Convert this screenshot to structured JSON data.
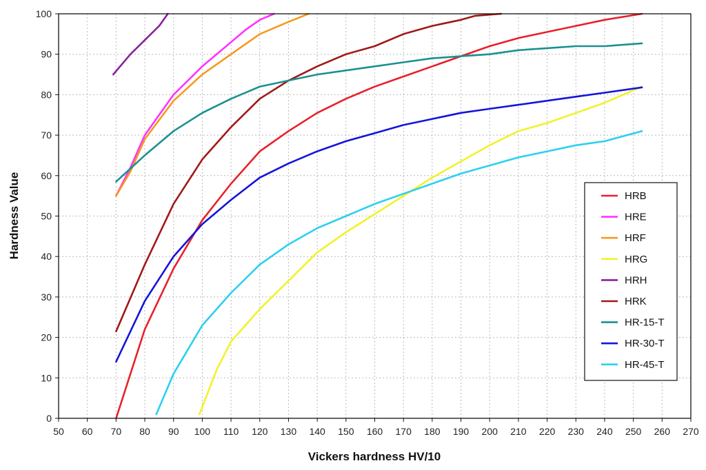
{
  "chart_data": {
    "type": "line",
    "title": "",
    "xlabel": "Vickers hardness HV/10",
    "ylabel": "Hardness Value",
    "xlim": [
      50,
      270
    ],
    "ylim": [
      0,
      100
    ],
    "x_ticks": [
      50,
      60,
      70,
      80,
      90,
      100,
      110,
      120,
      130,
      140,
      150,
      160,
      170,
      180,
      190,
      200,
      210,
      220,
      230,
      240,
      250,
      260,
      270
    ],
    "y_ticks": [
      0,
      10,
      20,
      30,
      40,
      50,
      60,
      70,
      80,
      90,
      100
    ],
    "grid": true,
    "legend_position": "right",
    "series": [
      {
        "name": "HRB",
        "color": "#e8202a",
        "points": [
          [
            70,
            0
          ],
          [
            80,
            22
          ],
          [
            90,
            37
          ],
          [
            100,
            49
          ],
          [
            110,
            58
          ],
          [
            120,
            66
          ],
          [
            130,
            71
          ],
          [
            140,
            75.5
          ],
          [
            150,
            79
          ],
          [
            160,
            82
          ],
          [
            170,
            84.5
          ],
          [
            180,
            87
          ],
          [
            190,
            89.5
          ],
          [
            200,
            92
          ],
          [
            210,
            94
          ],
          [
            220,
            95.5
          ],
          [
            230,
            97
          ],
          [
            240,
            98.5
          ],
          [
            253,
            100
          ]
        ]
      },
      {
        "name": "HRE",
        "color": "#ff33ff",
        "points": [
          [
            70,
            55
          ],
          [
            75,
            62
          ],
          [
            80,
            70
          ],
          [
            90,
            80
          ],
          [
            100,
            87
          ],
          [
            110,
            93
          ],
          [
            115,
            96
          ],
          [
            120,
            98.5
          ],
          [
            125,
            100
          ]
        ]
      },
      {
        "name": "HRF",
        "color": "#f59a1e",
        "points": [
          [
            70,
            55
          ],
          [
            75,
            61
          ],
          [
            80,
            69
          ],
          [
            90,
            78.5
          ],
          [
            100,
            85
          ],
          [
            110,
            90
          ],
          [
            120,
            95
          ],
          [
            130,
            98
          ],
          [
            137,
            100
          ]
        ]
      },
      {
        "name": "HRG",
        "color": "#f2f22a",
        "points": [
          [
            99,
            1
          ],
          [
            105,
            12
          ],
          [
            110,
            19
          ],
          [
            120,
            27
          ],
          [
            130,
            34
          ],
          [
            140,
            41
          ],
          [
            150,
            46
          ],
          [
            160,
            50.5
          ],
          [
            170,
            55
          ],
          [
            180,
            59.5
          ],
          [
            190,
            63.5
          ],
          [
            200,
            67.5
          ],
          [
            210,
            71
          ],
          [
            220,
            73
          ],
          [
            230,
            75.5
          ],
          [
            240,
            78
          ],
          [
            253,
            82
          ]
        ]
      },
      {
        "name": "HRH",
        "color": "#8c1fa0",
        "points": [
          [
            69,
            85
          ],
          [
            75,
            90
          ],
          [
            80,
            93.5
          ],
          [
            85,
            97
          ],
          [
            88,
            100
          ]
        ]
      },
      {
        "name": "HRK",
        "color": "#a01818",
        "points": [
          [
            70,
            21.5
          ],
          [
            80,
            38
          ],
          [
            90,
            53
          ],
          [
            100,
            64
          ],
          [
            110,
            72
          ],
          [
            120,
            79
          ],
          [
            130,
            83.5
          ],
          [
            140,
            87
          ],
          [
            150,
            90
          ],
          [
            160,
            92
          ],
          [
            170,
            95
          ],
          [
            180,
            97
          ],
          [
            190,
            98.5
          ],
          [
            195,
            99.5
          ],
          [
            204,
            100
          ]
        ]
      },
      {
        "name": "HR-15-T",
        "color": "#1a9090",
        "points": [
          [
            70,
            58.5
          ],
          [
            80,
            65
          ],
          [
            90,
            71
          ],
          [
            100,
            75.5
          ],
          [
            110,
            79
          ],
          [
            120,
            82
          ],
          [
            130,
            83.5
          ],
          [
            140,
            85
          ],
          [
            150,
            86
          ],
          [
            160,
            87
          ],
          [
            170,
            88
          ],
          [
            180,
            89
          ],
          [
            190,
            89.5
          ],
          [
            200,
            90
          ],
          [
            210,
            91
          ],
          [
            220,
            91.5
          ],
          [
            230,
            92
          ],
          [
            240,
            92
          ],
          [
            253,
            92.7
          ]
        ]
      },
      {
        "name": "HR-30-T",
        "color": "#1414dc",
        "points": [
          [
            70,
            14
          ],
          [
            80,
            29
          ],
          [
            90,
            40
          ],
          [
            100,
            48
          ],
          [
            110,
            54
          ],
          [
            120,
            59.5
          ],
          [
            130,
            63
          ],
          [
            140,
            66
          ],
          [
            150,
            68.5
          ],
          [
            160,
            70.5
          ],
          [
            170,
            72.5
          ],
          [
            180,
            74
          ],
          [
            190,
            75.5
          ],
          [
            200,
            76.5
          ],
          [
            210,
            77.5
          ],
          [
            220,
            78.5
          ],
          [
            230,
            79.5
          ],
          [
            240,
            80.5
          ],
          [
            253,
            81.8
          ]
        ]
      },
      {
        "name": "HR-45-T",
        "color": "#2ad0f0",
        "points": [
          [
            84,
            1
          ],
          [
            90,
            11
          ],
          [
            100,
            23
          ],
          [
            110,
            31
          ],
          [
            120,
            38
          ],
          [
            130,
            43
          ],
          [
            140,
            47
          ],
          [
            150,
            50
          ],
          [
            160,
            53
          ],
          [
            170,
            55.5
          ],
          [
            180,
            58
          ],
          [
            190,
            60.5
          ],
          [
            200,
            62.5
          ],
          [
            210,
            64.5
          ],
          [
            220,
            66
          ],
          [
            230,
            67.5
          ],
          [
            240,
            68.5
          ],
          [
            253,
            71
          ]
        ]
      }
    ]
  }
}
